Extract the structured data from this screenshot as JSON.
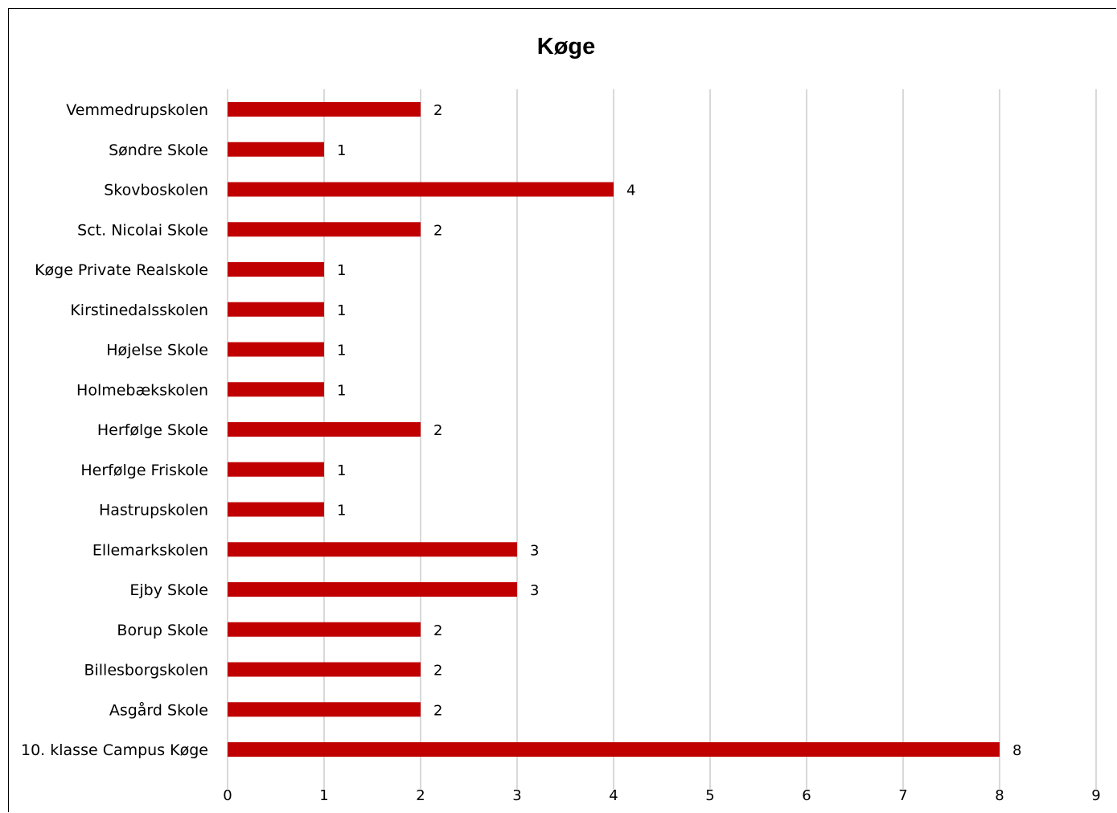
{
  "chart_data": {
    "type": "bar",
    "orientation": "horizontal",
    "title": "Køge",
    "xlabel": "",
    "ylabel": "",
    "categories": [
      "Vemmedrupskolen",
      "Søndre Skole",
      "Skovboskolen",
      "Sct. Nicolai Skole",
      "Køge Private Realskole",
      "Kirstinedalsskolen",
      "Højelse Skole",
      "Holmebækskolen",
      "Herfølge Skole",
      "Herfølge Friskole",
      "Hastrupskolen",
      "Ellemarkskolen",
      "Ejby Skole",
      "Borup Skole",
      "Billesborgskolen",
      "Asgård Skole",
      "10. klasse Campus Køge"
    ],
    "values": [
      2,
      1,
      4,
      2,
      1,
      1,
      1,
      1,
      2,
      1,
      1,
      3,
      3,
      2,
      2,
      2,
      8
    ],
    "xlim": [
      0,
      9
    ],
    "ticks": [
      0,
      1,
      2,
      3,
      4,
      5,
      6,
      7,
      8,
      9
    ],
    "grid": true,
    "data_labels": true,
    "bar_color": "#c00000",
    "grid_color": "#d9d9d9"
  }
}
